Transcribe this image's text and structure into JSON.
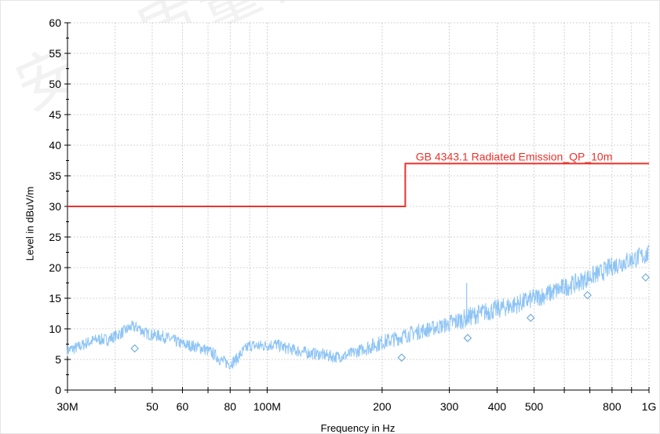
{
  "chart_data": {
    "type": "line",
    "title": "",
    "xlabel": "Frequency in Hz",
    "ylabel": "Level in dBuV/m",
    "x_scale": "log",
    "xlim": [
      30000000,
      1000000000
    ],
    "ylim": [
      0,
      60
    ],
    "grid": true,
    "x_tick_labels": [
      {
        "value": 30000000,
        "label": "30M"
      },
      {
        "value": 50000000,
        "label": "50"
      },
      {
        "value": 60000000,
        "label": "60"
      },
      {
        "value": 80000000,
        "label": "80"
      },
      {
        "value": 100000000,
        "label": "100M"
      },
      {
        "value": 200000000,
        "label": "200"
      },
      {
        "value": 300000000,
        "label": "300"
      },
      {
        "value": 400000000,
        "label": "400"
      },
      {
        "value": 500000000,
        "label": "500"
      },
      {
        "value": 800000000,
        "label": "800"
      },
      {
        "value": 1000000000,
        "label": "1G"
      }
    ],
    "y_tick_labels": [
      "0",
      "5",
      "10",
      "15",
      "20",
      "25",
      "30",
      "35",
      "40",
      "45",
      "50",
      "55",
      "60"
    ],
    "series": [
      {
        "name": "GB 4343.1 Radiated Emission_QP_10m",
        "kind": "limit",
        "color": "#e8332d",
        "points": [
          [
            30000000,
            30
          ],
          [
            230000000,
            30
          ],
          [
            230000000,
            37
          ],
          [
            1000000000,
            37
          ]
        ]
      },
      {
        "name": "",
        "kind": "spectrum",
        "color": "#8ec4f5",
        "points": [
          [
            30000000,
            6.5
          ],
          [
            32000000,
            7.0
          ],
          [
            34000000,
            7.8
          ],
          [
            36000000,
            8.3
          ],
          [
            38000000,
            8.2
          ],
          [
            40000000,
            8.8
          ],
          [
            42000000,
            9.5
          ],
          [
            44000000,
            10.3
          ],
          [
            46000000,
            10.2
          ],
          [
            48000000,
            9.3
          ],
          [
            50000000,
            9.0
          ],
          [
            53000000,
            8.8
          ],
          [
            56000000,
            8.3
          ],
          [
            60000000,
            7.5
          ],
          [
            64000000,
            7.2
          ],
          [
            68000000,
            6.8
          ],
          [
            72000000,
            6.0
          ],
          [
            76000000,
            4.8
          ],
          [
            78000000,
            4.5
          ],
          [
            80000000,
            4.3
          ],
          [
            83000000,
            5.0
          ],
          [
            87000000,
            6.5
          ],
          [
            90000000,
            7.3
          ],
          [
            95000000,
            7.2
          ],
          [
            100000000,
            7.3
          ],
          [
            105000000,
            7.5
          ],
          [
            110000000,
            7.0
          ],
          [
            120000000,
            6.4
          ],
          [
            130000000,
            6.0
          ],
          [
            140000000,
            5.8
          ],
          [
            150000000,
            5.4
          ],
          [
            160000000,
            5.6
          ],
          [
            170000000,
            6.2
          ],
          [
            180000000,
            6.8
          ],
          [
            190000000,
            7.3
          ],
          [
            200000000,
            7.8
          ],
          [
            220000000,
            8.5
          ],
          [
            240000000,
            9.3
          ],
          [
            260000000,
            9.8
          ],
          [
            280000000,
            10.3
          ],
          [
            300000000,
            10.8
          ],
          [
            320000000,
            11.4
          ],
          [
            340000000,
            12.0
          ],
          [
            360000000,
            12.5
          ],
          [
            380000000,
            12.9
          ],
          [
            400000000,
            13.2
          ],
          [
            450000000,
            14.0
          ],
          [
            500000000,
            15.0
          ],
          [
            550000000,
            15.8
          ],
          [
            600000000,
            16.8
          ],
          [
            650000000,
            17.5
          ],
          [
            700000000,
            18.5
          ],
          [
            750000000,
            19.2
          ],
          [
            800000000,
            20.2
          ],
          [
            850000000,
            20.8
          ],
          [
            900000000,
            21.3
          ],
          [
            950000000,
            21.8
          ],
          [
            1000000000,
            22.2
          ]
        ]
      },
      {
        "name": "",
        "kind": "qp_markers",
        "color": "#6aa9d8",
        "points": [
          [
            45000000,
            6.8
          ],
          [
            225000000,
            5.3
          ],
          [
            335000000,
            8.5
          ],
          [
            490000000,
            11.8
          ],
          [
            690000000,
            15.5
          ],
          [
            980000000,
            18.4
          ]
        ]
      }
    ]
  },
  "watermark": "安全质量检测"
}
